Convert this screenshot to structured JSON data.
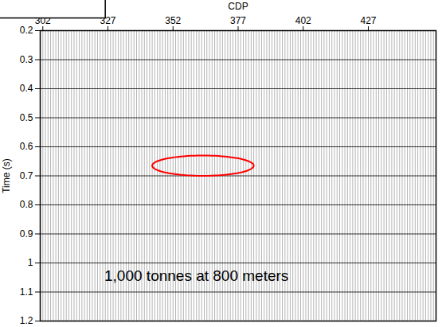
{
  "chart_data": {
    "type": "wiggle",
    "x_label": "CDP",
    "y_label": "Time (s)",
    "xlim": [
      301,
      453
    ],
    "xticks": [
      302,
      327,
      352,
      377,
      402,
      427
    ],
    "ylim": [
      0.2,
      1.2
    ],
    "yticks": [
      0.2,
      0.3,
      0.4,
      0.5,
      0.6,
      0.7,
      0.8,
      0.9,
      1,
      1.1,
      1.2
    ],
    "grid": true,
    "color": "black",
    "traces": [
      302,
      303,
      304,
      305,
      306,
      307,
      308,
      309,
      310,
      311,
      312,
      313,
      314,
      315,
      316,
      317,
      318,
      319,
      320,
      321,
      322,
      323,
      324,
      325,
      326,
      327,
      328,
      329,
      330,
      331,
      332,
      333,
      334,
      335,
      336,
      337,
      338,
      339,
      340,
      341,
      342,
      343,
      344,
      345,
      346,
      347,
      348,
      349,
      350,
      351,
      352,
      353,
      354,
      355,
      356,
      357,
      358,
      359,
      360,
      361,
      362,
      363,
      364,
      365,
      366,
      367,
      368,
      369,
      370,
      371,
      372,
      373,
      374,
      375,
      376,
      377,
      378,
      379,
      380,
      381,
      382,
      383,
      384,
      385,
      386,
      387,
      388,
      389,
      390,
      391,
      392,
      393,
      394,
      395,
      396,
      397,
      398,
      399,
      400,
      401,
      402,
      403,
      404,
      405,
      406,
      407,
      408,
      409,
      410,
      411,
      412,
      413,
      414,
      415,
      416,
      417,
      418,
      419,
      420,
      421,
      422,
      423,
      424,
      425,
      426,
      427,
      428,
      429,
      430,
      431,
      432,
      433,
      434,
      435,
      436,
      437,
      438,
      439,
      440,
      441,
      442,
      443,
      444,
      445,
      446,
      447,
      448,
      449,
      450,
      451,
      452
    ],
    "highlight": {
      "cdp": [
        344,
        383
      ],
      "time": [
        0.63,
        0.7
      ],
      "color": "red"
    },
    "annotation": {
      "text": "1,000 tonnes at 800 meters",
      "cdp": 361,
      "time": 1.045
    }
  }
}
